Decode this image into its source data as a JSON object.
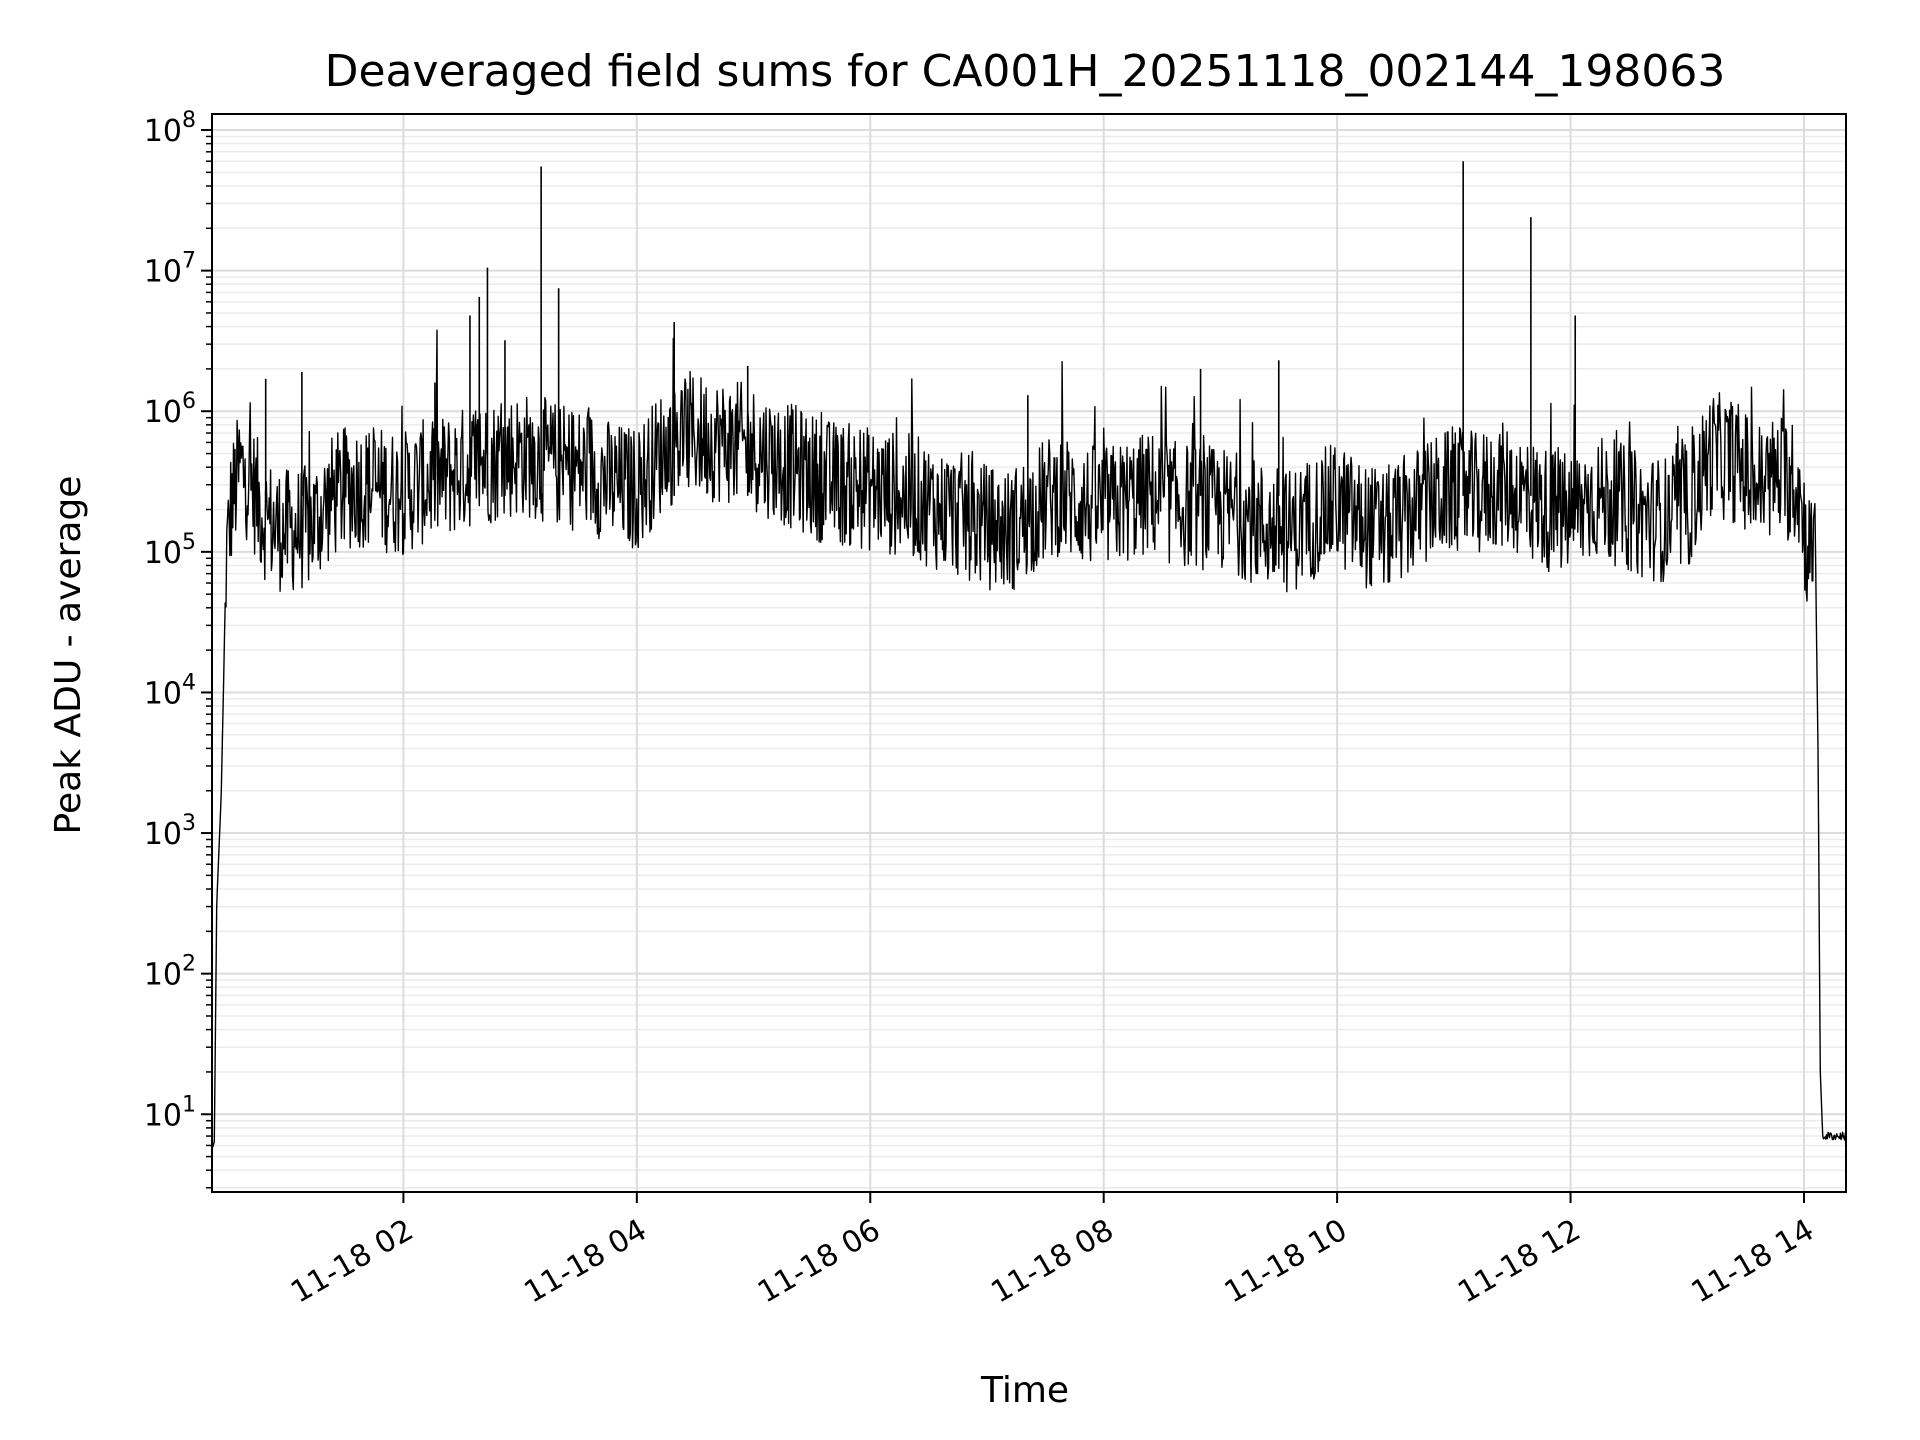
{
  "chart_data": {
    "type": "line",
    "title": "Deaveraged field sums for CA001H_20251118_002144_198063",
    "xlabel": "Time",
    "ylabel": "Peak ADU - average",
    "yscale": "log",
    "xlim_hours": [
      0.36,
      14.36
    ],
    "ylim": [
      2.8,
      130000000
    ],
    "x_ticks": [
      {
        "hour": 2,
        "label": "11-18 02"
      },
      {
        "hour": 4,
        "label": "11-18 04"
      },
      {
        "hour": 6,
        "label": "11-18 06"
      },
      {
        "hour": 8,
        "label": "11-18 08"
      },
      {
        "hour": 10,
        "label": "11-18 10"
      },
      {
        "hour": 12,
        "label": "11-18 12"
      },
      {
        "hour": 14,
        "label": "11-18 14"
      }
    ],
    "y_ticks": [
      {
        "value": 10,
        "base": "10",
        "exp": "1"
      },
      {
        "value": 100,
        "base": "10",
        "exp": "2"
      },
      {
        "value": 1000,
        "base": "10",
        "exp": "3"
      },
      {
        "value": 10000,
        "base": "10",
        "exp": "4"
      },
      {
        "value": 100000,
        "base": "10",
        "exp": "5"
      },
      {
        "value": 1000000,
        "base": "10",
        "exp": "6"
      },
      {
        "value": 10000000,
        "base": "10",
        "exp": "7"
      },
      {
        "value": 100000000,
        "base": "10",
        "exp": "8"
      }
    ],
    "grid": true,
    "series": [
      {
        "name": "field sums",
        "color": "#000000",
        "x_hours": [
          0.36,
          0.38,
          0.4,
          0.44,
          0.48,
          0.52,
          0.6,
          0.7,
          0.8,
          0.9,
          1.0,
          1.2,
          1.4,
          1.6,
          1.8,
          2.0,
          2.2,
          2.4,
          2.6,
          2.8,
          3.0,
          3.2,
          3.4,
          3.6,
          3.8,
          4.0,
          4.2,
          4.4,
          4.6,
          4.8,
          5.0,
          5.2,
          5.4,
          5.6,
          5.8,
          6.0,
          6.2,
          6.4,
          6.6,
          6.8,
          7.0,
          7.2,
          7.4,
          7.6,
          7.8,
          8.0,
          8.2,
          8.4,
          8.6,
          8.8,
          9.0,
          9.2,
          9.4,
          9.6,
          9.8,
          10.0,
          10.2,
          10.4,
          10.6,
          10.8,
          11.0,
          11.2,
          11.4,
          11.6,
          11.8,
          12.0,
          12.2,
          12.4,
          12.6,
          12.8,
          13.0,
          13.2,
          13.4,
          13.6,
          13.8,
          13.95,
          14.02,
          14.1,
          14.12,
          14.14,
          14.16,
          14.2,
          14.3,
          14.36
        ],
        "values": [
          6,
          6,
          300,
          2000,
          80000,
          200000,
          400000,
          300000,
          180000,
          150000,
          140000,
          150000,
          250000,
          300000,
          280000,
          260000,
          320000,
          350000,
          420000,
          450000,
          500000,
          450000,
          400000,
          380000,
          300000,
          280000,
          500000,
          700000,
          650000,
          600000,
          550000,
          450000,
          380000,
          320000,
          300000,
          280000,
          260000,
          240000,
          200000,
          180000,
          150000,
          140000,
          200000,
          260000,
          220000,
          200000,
          230000,
          260000,
          220000,
          210000,
          200000,
          180000,
          150000,
          140000,
          180000,
          220000,
          160000,
          140000,
          180000,
          230000,
          280000,
          250000,
          300000,
          250000,
          200000,
          180000,
          250000,
          220000,
          180000,
          170000,
          200000,
          500000,
          450000,
          300000,
          350000,
          300000,
          120000,
          80000,
          4000,
          20,
          7,
          7,
          7,
          7
        ]
      }
    ],
    "spikes": [
      {
        "hour": 0.82,
        "value": 1700000
      },
      {
        "hour": 1.13,
        "value": 1900000
      },
      {
        "hour": 2.27,
        "value": 1600000
      },
      {
        "hour": 2.57,
        "value": 4800000
      },
      {
        "hour": 2.65,
        "value": 6500000
      },
      {
        "hour": 2.72,
        "value": 10500000
      },
      {
        "hour": 2.87,
        "value": 3200000
      },
      {
        "hour": 3.18,
        "value": 55000000
      },
      {
        "hour": 3.33,
        "value": 7500000
      },
      {
        "hour": 4.32,
        "value": 4300000
      },
      {
        "hour": 4.95,
        "value": 2100000
      },
      {
        "hour": 7.35,
        "value": 1300000
      },
      {
        "hour": 8.83,
        "value": 2000000
      },
      {
        "hour": 9.5,
        "value": 2300000
      },
      {
        "hour": 11.08,
        "value": 60000000
      },
      {
        "hour": 11.66,
        "value": 24000000
      },
      {
        "hour": 12.04,
        "value": 4800000
      }
    ]
  }
}
